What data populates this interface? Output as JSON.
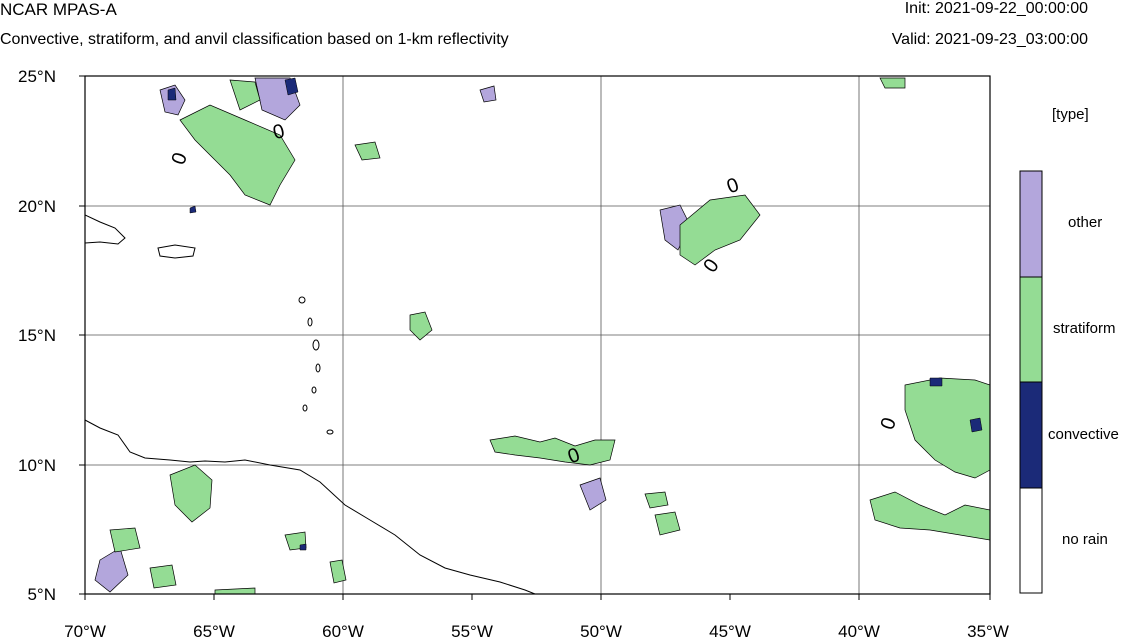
{
  "header": {
    "title": "NCAR MPAS-A",
    "subtitle": "Convective, stratiform, and anvil classification based on 1-km reflectivity",
    "init": "Init: 2021-09-22_00:00:00",
    "valid": "Valid: 2021-09-23_03:00:00"
  },
  "map": {
    "lon_labels": [
      "70°W",
      "65°W",
      "60°W",
      "55°W",
      "50°W",
      "45°W",
      "40°W",
      "35°W"
    ],
    "lat_labels": [
      "25°N",
      "20°N",
      "15°N",
      "10°N",
      "5°N"
    ],
    "contour_labels": [
      "0",
      "0",
      "0",
      "0",
      "0",
      "0",
      "0"
    ],
    "grid": true,
    "extent": {
      "lon": [
        -70,
        -35
      ],
      "lat": [
        5,
        25
      ]
    }
  },
  "legend": {
    "title": "[type]",
    "items": [
      {
        "label": "other",
        "color": "#b3a6dc"
      },
      {
        "label": "stratiform",
        "color": "#94dc94"
      },
      {
        "label": "convective",
        "color": "#1b2a78"
      },
      {
        "label": "no rain",
        "color": "#ffffff"
      }
    ]
  },
  "colors": {
    "other": "#b3a6dc",
    "stratiform": "#94dc94",
    "convective": "#1b2a78",
    "no_rain": "#ffffff"
  }
}
